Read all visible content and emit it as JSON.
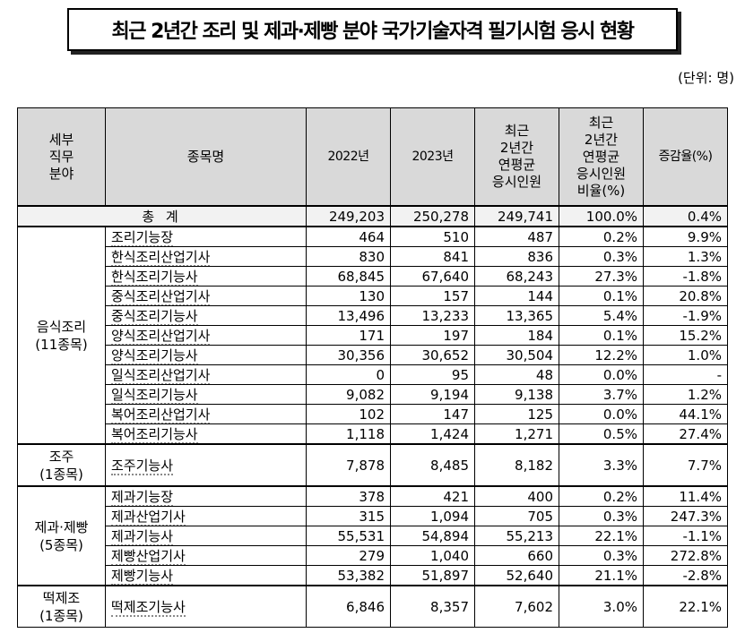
{
  "title": "최근 2년간 조리 및 제과·제빵 분야 국가기술자격 필기시험 응시 현황",
  "unit": "(단위:  명)",
  "headers": {
    "field": [
      "세부",
      "직무",
      "분야"
    ],
    "item": "종목명",
    "y2022": "2022년",
    "y2023": "2023년",
    "avg": [
      "최근",
      "2년간",
      "연평균",
      "응시인원"
    ],
    "ratio": [
      "최근",
      "2년간",
      "연평균",
      "응시인원",
      "비율(%)"
    ],
    "growth": "증감율(%)"
  },
  "total": {
    "label": "총  계",
    "y2022": "249,203",
    "y2023": "250,278",
    "avg": "249,741",
    "ratio": "100.0%",
    "growth": "0.4%"
  },
  "groups": [
    {
      "name": "음식조리",
      "count": "(11종목)",
      "rows": [
        {
          "item": "조리기능장",
          "y2022": "464",
          "y2023": "510",
          "avg": "487",
          "ratio": "0.2%",
          "growth": "9.9%"
        },
        {
          "item": "한식조리산업기사",
          "y2022": "830",
          "y2023": "841",
          "avg": "836",
          "ratio": "0.3%",
          "growth": "1.3%"
        },
        {
          "item": "한식조리기능사",
          "y2022": "68,845",
          "y2023": "67,640",
          "avg": "68,243",
          "ratio": "27.3%",
          "growth": "-1.8%"
        },
        {
          "item": "중식조리산업기사",
          "y2022": "130",
          "y2023": "157",
          "avg": "144",
          "ratio": "0.1%",
          "growth": "20.8%"
        },
        {
          "item": "중식조리기능사",
          "y2022": "13,496",
          "y2023": "13,233",
          "avg": "13,365",
          "ratio": "5.4%",
          "growth": "-1.9%"
        },
        {
          "item": "양식조리산업기사",
          "y2022": "171",
          "y2023": "197",
          "avg": "184",
          "ratio": "0.1%",
          "growth": "15.2%"
        },
        {
          "item": "양식조리기능사",
          "y2022": "30,356",
          "y2023": "30,652",
          "avg": "30,504",
          "ratio": "12.2%",
          "growth": "1.0%"
        },
        {
          "item": "일식조리산업기사",
          "y2022": "0",
          "y2023": "95",
          "avg": "48",
          "ratio": "0.0%",
          "growth": "-"
        },
        {
          "item": "일식조리기능사",
          "y2022": "9,082",
          "y2023": "9,194",
          "avg": "9,138",
          "ratio": "3.7%",
          "growth": "1.2%"
        },
        {
          "item": "복어조리산업기사",
          "y2022": "102",
          "y2023": "147",
          "avg": "125",
          "ratio": "0.0%",
          "growth": "44.1%"
        },
        {
          "item": "복어조리기능사",
          "y2022": "1,118",
          "y2023": "1,424",
          "avg": "1,271",
          "ratio": "0.5%",
          "growth": "27.4%"
        }
      ]
    },
    {
      "name": "조주",
      "count": "(1종목)",
      "rows": [
        {
          "item": "조주기능사",
          "y2022": "7,878",
          "y2023": "8,485",
          "avg": "8,182",
          "ratio": "3.3%",
          "growth": "7.7%"
        }
      ]
    },
    {
      "name": "제과·제빵",
      "count": "(5종목)",
      "rows": [
        {
          "item": "제과기능장",
          "y2022": "378",
          "y2023": "421",
          "avg": "400",
          "ratio": "0.2%",
          "growth": "11.4%"
        },
        {
          "item": "제과산업기사",
          "y2022": "315",
          "y2023": "1,094",
          "avg": "705",
          "ratio": "0.3%",
          "growth": "247.3%"
        },
        {
          "item": "제과기능사",
          "y2022": "55,531",
          "y2023": "54,894",
          "avg": "55,213",
          "ratio": "22.1%",
          "growth": "-1.1%"
        },
        {
          "item": "제빵산업기사",
          "y2022": "279",
          "y2023": "1,040",
          "avg": "660",
          "ratio": "0.3%",
          "growth": "272.8%"
        },
        {
          "item": "제빵기능사",
          "y2022": "53,382",
          "y2023": "51,897",
          "avg": "52,640",
          "ratio": "21.1%",
          "growth": "-2.8%"
        }
      ]
    },
    {
      "name": "떡제조",
      "count": "(1종목)",
      "rows": [
        {
          "item": "떡제조기능사",
          "y2022": "6,846",
          "y2023": "8,357",
          "avg": "7,602",
          "ratio": "3.0%",
          "growth": "22.1%"
        }
      ]
    }
  ]
}
